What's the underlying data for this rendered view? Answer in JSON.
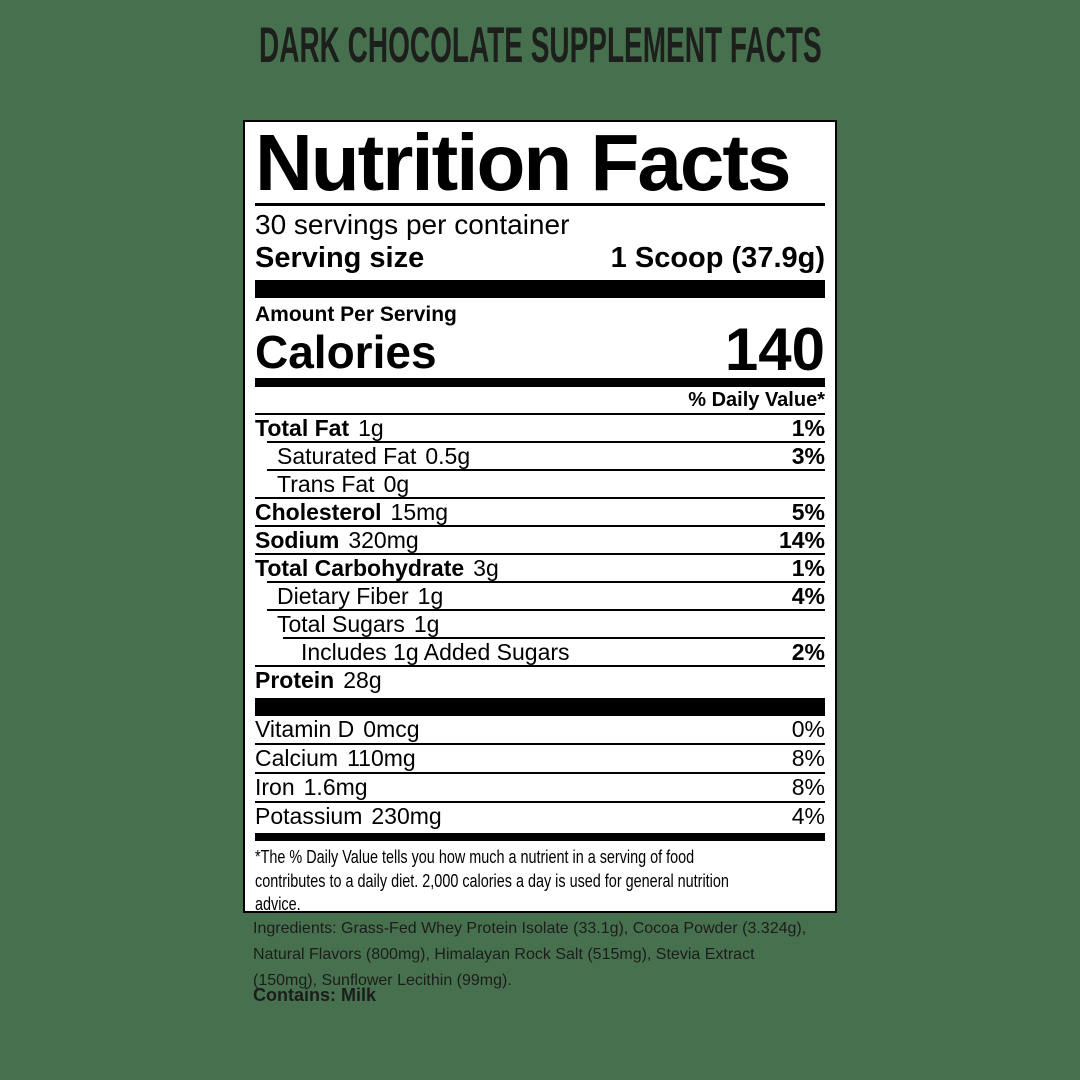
{
  "title": "DARK CHOCOLATE SUPPLEMENT FACTS",
  "colors": {
    "background": "#47714E",
    "label_background": "#FFFFFF",
    "ink": "#000000"
  },
  "label": {
    "heading": "Nutrition Facts",
    "servings_per_container": "30 servings per container",
    "serving_size": {
      "label": "Serving size",
      "value": "1 Scoop (37.9g)"
    },
    "amount_per_serving": "Amount Per Serving",
    "calories": {
      "label": "Calories",
      "value": "140"
    },
    "daily_value_header": "% Daily Value*",
    "nutrients": [
      {
        "name": "Total Fat",
        "amount": "1g",
        "dv": "1%"
      },
      {
        "name": "Saturated Fat",
        "amount": "0.5g",
        "dv": "3%"
      },
      {
        "name": "Trans Fat",
        "amount": "0g",
        "dv": ""
      },
      {
        "name": "Cholesterol",
        "amount": "15mg",
        "dv": "5%"
      },
      {
        "name": "Sodium",
        "amount": "320mg",
        "dv": "14%"
      },
      {
        "name": "Total Carbohydrate",
        "amount": "3g",
        "dv": "1%"
      },
      {
        "name": "Dietary Fiber",
        "amount": "1g",
        "dv": "4%"
      },
      {
        "name": "Total Sugars",
        "amount": "1g",
        "dv": ""
      },
      {
        "name": "Includes 1g Added Sugars",
        "amount": "",
        "dv": "2%"
      },
      {
        "name": "Protein",
        "amount": "28g",
        "dv": ""
      }
    ],
    "micronutrients": [
      {
        "name": "Vitamin D",
        "amount": "0mcg",
        "dv": "0%"
      },
      {
        "name": "Calcium",
        "amount": "110mg",
        "dv": "8%"
      },
      {
        "name": "Iron",
        "amount": "1.6mg",
        "dv": "8%"
      },
      {
        "name": "Potassium",
        "amount": "230mg",
        "dv": "4%"
      }
    ],
    "footnote_lines": [
      "*The % Daily Value tells you how much a nutrient in a serving of food",
      "contributes to a daily diet. 2,000 calories a day is used for general nutrition",
      "advice."
    ]
  },
  "ingredients": {
    "text": "Ingredients: Grass-Fed Whey Protein Isolate (33.1g), Cocoa Powder (3.324g), Natural Flavors (800mg), Himalayan Rock Salt (515mg), Stevia Extract (150mg), Sunflower Lecithin (99mg).",
    "contains": "Contains: Milk"
  }
}
